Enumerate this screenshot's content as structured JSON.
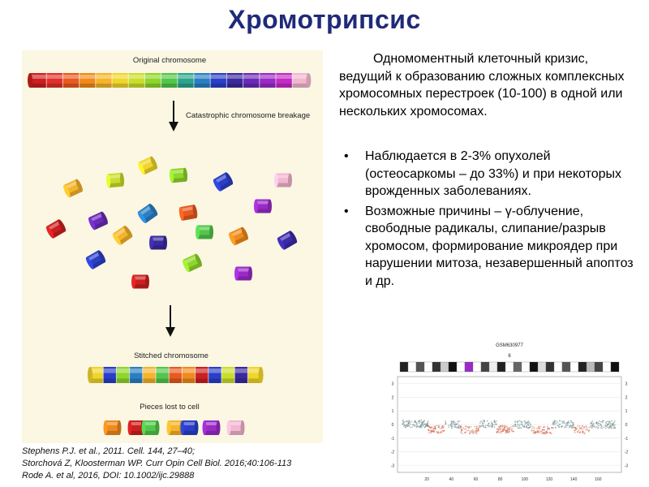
{
  "slide": {
    "title": "Хромотрипсис",
    "intro": "Одномоментный клеточный кризис, ведущий к образованию сложных комплексных хромосомных перестроек (10-100) в одной или нескольких хромосомах.",
    "bullets": [
      {
        "text": "Наблюдается в 2-3% опухолей (остеосаркомы – до 33%) и при некоторых врожденных заболеваниях."
      },
      {
        "text": "Возможные причины – γ-облучение, свободные радикалы, слипание/разрыв хромосом, формирование микроядер при нарушении митоза, незавершенный апоптоз и др."
      }
    ],
    "bullet_symbol": "•",
    "references": [
      "Stephens P.J. et al., 2011. Cell. 144, 27–40;",
      "Storchová Z, Kloosterman WP. Curr Opin Cell Biol. 2016;40:106-113",
      "Rode A. et al, 2016, DOI: 10.1002/ijc.29888"
    ]
  },
  "diagram": {
    "labels": {
      "original": "Original chromosome",
      "breakage": "Catastrophic chromosome breakage",
      "stitched": "Stitched chromosome",
      "lost": "Pieces lost to cell"
    },
    "original_segments": [
      "#cc1f1f",
      "#e0302a",
      "#e85a1e",
      "#f08a1c",
      "#f5b42a",
      "#f0d52a",
      "#c9de2a",
      "#8fd62a",
      "#52c64a",
      "#2aa58c",
      "#2a7fc4",
      "#2a3fc8",
      "#3a2a9e",
      "#6a2ab8",
      "#9a2ac8",
      "#c42ac4",
      "#f2b6cf"
    ],
    "stitched_segments": [
      "#f0d52a",
      "#2a3fc8",
      "#8fd62a",
      "#2a7fc4",
      "#f5b42a",
      "#52c64a",
      "#e85a1e",
      "#f08a1c",
      "#cc1f1f",
      "#2a3fc8",
      "#c9de2a",
      "#3a2a9e",
      "#f0d52a"
    ],
    "lost_segments": [
      "#f08a1c",
      "#cc1f1f",
      "#52c64a",
      "#f5b42a",
      "#2a3fc8",
      "#9a2ac8",
      "#f2b6cf"
    ]
  },
  "plot": {
    "title": "GSM630977",
    "subtitle": "6",
    "y_ticks": [
      "3",
      "2",
      "1",
      "0",
      "-1",
      "-2",
      "-3"
    ],
    "x_ticks": [
      "20",
      "40",
      "60",
      "80",
      "100",
      "120",
      "140",
      "160"
    ]
  }
}
